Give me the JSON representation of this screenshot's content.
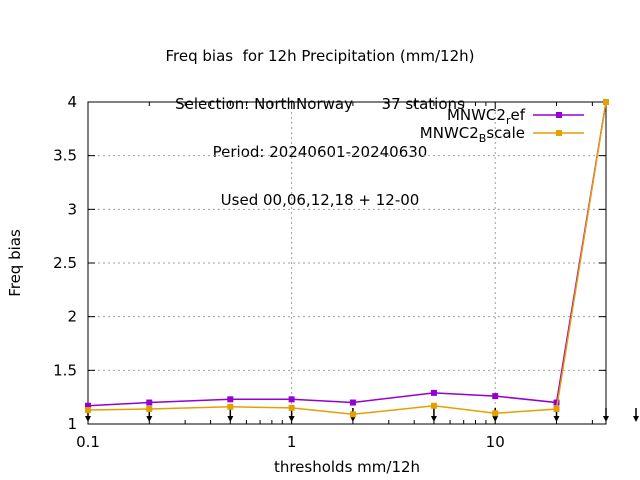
{
  "chart_data": {
    "type": "line",
    "title_lines": [
      "Freq bias  for 12h Precipitation (mm/12h)",
      "Selection: NorthNorway      37 stations",
      "Period: 20240601-20240630",
      "Used 00,06,12,18 + 12-00"
    ],
    "xlabel": "thresholds mm/12h",
    "ylabel": "Freq bias",
    "x_scale": "log",
    "xlim": [
      0.1,
      35
    ],
    "ylim": [
      1,
      4
    ],
    "xticks": [
      0.1,
      1,
      10
    ],
    "xtick_labels": [
      "0.1",
      "1",
      "10"
    ],
    "yticks": [
      1,
      1.5,
      2,
      2.5,
      3,
      3.5,
      4
    ],
    "ytick_labels": [
      "1",
      "1.5",
      "2",
      "2.5",
      "3",
      "3.5",
      "4"
    ],
    "grid": true,
    "legend_position": "top-right",
    "x": [
      0.1,
      0.2,
      0.5,
      1,
      2,
      5,
      10,
      20,
      35
    ],
    "series": [
      {
        "name_main": "MNWC2",
        "name_sub": "r",
        "name_rest": "ef",
        "color": "#9400d3",
        "values": [
          1.17,
          1.2,
          1.23,
          1.23,
          1.2,
          1.29,
          1.26,
          1.2,
          4.0
        ]
      },
      {
        "name_main": "MNWC2",
        "name_sub": "B",
        "name_rest": "scale",
        "color": "#e69f00",
        "values": [
          1.13,
          1.14,
          1.16,
          1.15,
          1.09,
          1.17,
          1.1,
          1.14,
          4.0
        ]
      }
    ],
    "count_markers_x": [
      0.1,
      0.2,
      0.5,
      1,
      2,
      5,
      10,
      20,
      35,
      50
    ]
  }
}
